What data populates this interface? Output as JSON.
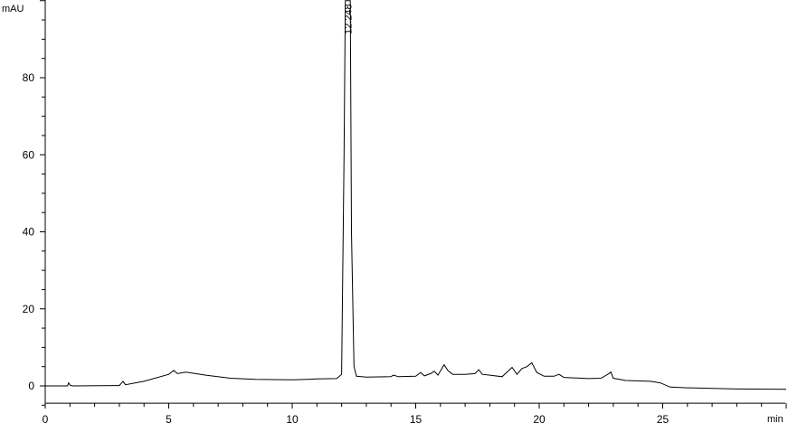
{
  "chart_data": {
    "type": "line",
    "title": "",
    "xlabel": "min",
    "ylabel": "mAU",
    "xlim": [
      0,
      30
    ],
    "ylim": [
      -4.5,
      100
    ],
    "x_ticks": [
      0,
      5,
      10,
      15,
      20,
      25
    ],
    "y_ticks": [
      0,
      20,
      40,
      60,
      80
    ],
    "grid": false,
    "line_color": "#000000",
    "annotations": [
      {
        "x": 12.248,
        "label": "12.248"
      }
    ],
    "series": [
      {
        "x": [
          0,
          0.9,
          0.95,
          1.0,
          1.1,
          3.0,
          3.15,
          3.25,
          4.0,
          5.0,
          5.2,
          5.35,
          5.7,
          6.5,
          7.5,
          8.5,
          10,
          10.6,
          11,
          11.8,
          12.0,
          12.1,
          12.15,
          12.35,
          12.4,
          12.5,
          12.6,
          13,
          14,
          14.1,
          14.3,
          15,
          15.2,
          15.35,
          15.6,
          15.75,
          15.9,
          16.15,
          16.3,
          16.5,
          17,
          17.4,
          17.55,
          17.7,
          18,
          18.5,
          18.9,
          19.1,
          19.3,
          19.5,
          19.7,
          19.9,
          20.2,
          20.6,
          20.8,
          21,
          22,
          22.5,
          22.8,
          22.9,
          23.0,
          23.5,
          24.5,
          24.9,
          25.3,
          26,
          28,
          30
        ],
        "y": [
          0,
          0,
          0.8,
          0.2,
          0,
          0.1,
          1.2,
          0.3,
          1.2,
          3,
          4,
          3.2,
          3.6,
          2.8,
          2,
          1.7,
          1.6,
          1.7,
          1.8,
          1.9,
          3,
          60,
          100,
          100,
          40,
          5,
          2.5,
          2.3,
          2.4,
          2.8,
          2.4,
          2.5,
          3.5,
          2.6,
          3.2,
          3.8,
          2.8,
          5.5,
          4,
          3,
          3,
          3.2,
          4.2,
          3,
          2.8,
          2.4,
          4.8,
          3,
          4.5,
          5,
          6,
          3.5,
          2.5,
          2.5,
          3,
          2.2,
          1.9,
          2,
          3.1,
          3.6,
          2,
          1.4,
          1.2,
          0.8,
          -0.3,
          -0.5,
          -0.8,
          -0.9
        ]
      }
    ]
  }
}
